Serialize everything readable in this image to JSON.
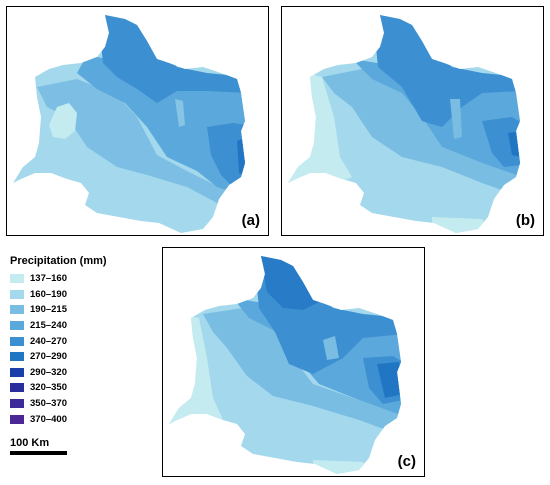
{
  "panels": [
    {
      "label": "(a)",
      "zone_classes": [
        "160-190",
        "137-160",
        "190-215",
        "215-240",
        "240-270",
        "270-290"
      ]
    },
    {
      "label": "(b)",
      "zone_classes": [
        "137-160",
        "160-190",
        "190-215",
        "215-240",
        "240-270",
        "270-290"
      ]
    },
    {
      "label": "(c)",
      "zone_classes": [
        "137-160",
        "160-190",
        "190-215",
        "215-240",
        "240-270",
        "270-290"
      ]
    }
  ],
  "legend": {
    "title": "Precipitation (mm)",
    "items": [
      {
        "label": "137–160",
        "color": "#c4ecf0"
      },
      {
        "label": "160–190",
        "color": "#a4d8ec"
      },
      {
        "label": "190–215",
        "color": "#79bde3"
      },
      {
        "label": "215–240",
        "color": "#5aa8dc"
      },
      {
        "label": "240–270",
        "color": "#3c8fd0"
      },
      {
        "label": "270–290",
        "color": "#2176c4"
      },
      {
        "label": "290–320",
        "color": "#1a3fa8"
      },
      {
        "label": "320–350",
        "color": "#2c2d9c"
      },
      {
        "label": "350–370",
        "color": "#3a2b98"
      },
      {
        "label": "370–400",
        "color": "#4a2794"
      }
    ]
  },
  "scalebar": {
    "label": "100 Km"
  }
}
